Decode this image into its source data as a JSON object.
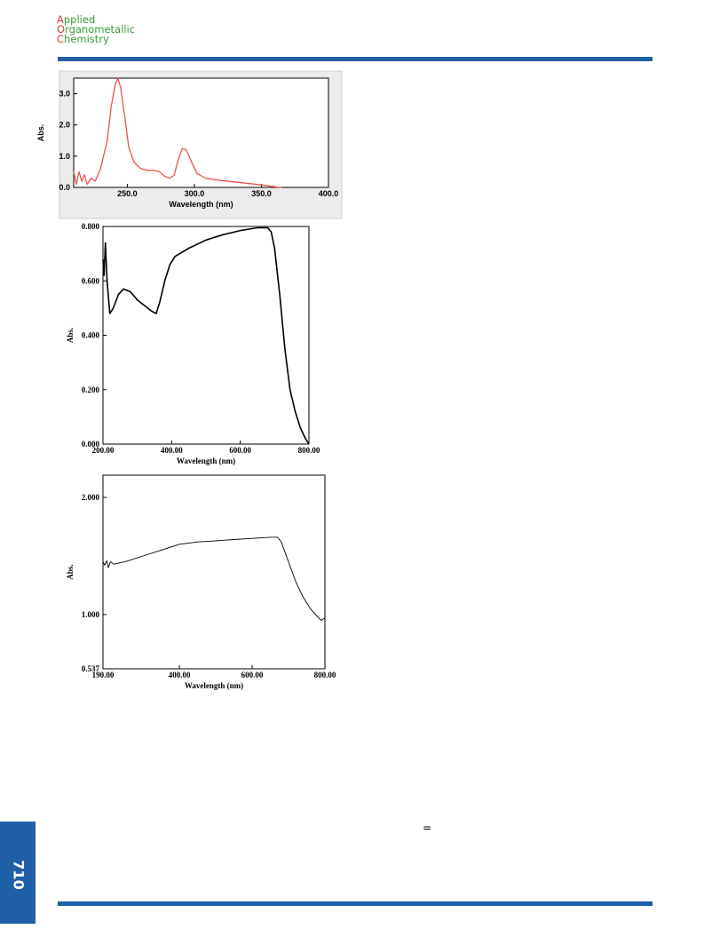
{
  "header": {
    "journal": [
      "Applied",
      "Organometallic",
      "Chemistry"
    ]
  },
  "page_number": "710",
  "symbol": "=",
  "chart_data": [
    {
      "type": "line",
      "xlabel": "Wavelength (nm)",
      "ylabel": "Abs.",
      "xlim": [
        210,
        400
      ],
      "ylim": [
        0,
        3.5
      ],
      "xticks": [
        {
          "value": 250,
          "label": "250.0"
        },
        {
          "value": 300,
          "label": "300.0"
        },
        {
          "value": 350,
          "label": "350.0"
        },
        {
          "value": 400,
          "label": "400.0"
        }
      ],
      "yticks": [
        {
          "value": 0,
          "label": "0.0"
        },
        {
          "value": 1,
          "label": "1.0"
        },
        {
          "value": 2,
          "label": "2.0"
        },
        {
          "value": 3,
          "label": "3.0"
        }
      ],
      "x": [
        210,
        212,
        214,
        216,
        218,
        220,
        223,
        226,
        230,
        235,
        238,
        241,
        243,
        245,
        248,
        251,
        255,
        260,
        265,
        270,
        274,
        278,
        282,
        285,
        288,
        291,
        294,
        298,
        302,
        308,
        320,
        335,
        350,
        360,
        365
      ],
      "series": [
        {
          "color": "#e8534f",
          "values": [
            0.5,
            0.1,
            0.5,
            0.2,
            0.4,
            0.1,
            0.3,
            0.2,
            0.6,
            1.5,
            2.6,
            3.3,
            3.5,
            3.2,
            2.3,
            1.3,
            0.8,
            0.6,
            0.55,
            0.55,
            0.5,
            0.35,
            0.3,
            0.4,
            0.9,
            1.25,
            1.2,
            0.8,
            0.45,
            0.3,
            0.22,
            0.15,
            0.08,
            0.02,
            0
          ]
        }
      ]
    },
    {
      "type": "line",
      "xlabel": "Wavelength (nm)",
      "ylabel": "Abs.",
      "xlim": [
        200,
        800
      ],
      "ylim": [
        0,
        0.8
      ],
      "xticks": [
        {
          "value": 200,
          "label": "200.00"
        },
        {
          "value": 400,
          "label": "400.00"
        },
        {
          "value": 600,
          "label": "600.00"
        },
        {
          "value": 800,
          "label": "800.00"
        }
      ],
      "yticks": [
        {
          "value": 0,
          "label": "0.000"
        },
        {
          "value": 0.2,
          "label": "0.200"
        },
        {
          "value": 0.4,
          "label": "0.400"
        },
        {
          "value": 0.6,
          "label": "0.600"
        },
        {
          "value": 0.8,
          "label": "0.800"
        }
      ],
      "x": [
        200,
        203,
        207,
        212,
        220,
        230,
        245,
        260,
        280,
        300,
        320,
        340,
        355,
        365,
        380,
        395,
        410,
        450,
        500,
        550,
        600,
        650,
        680,
        690,
        700,
        715,
        730,
        745,
        760,
        775,
        790,
        800
      ],
      "series": [
        {
          "color": "#000000",
          "values": [
            0.68,
            0.62,
            0.74,
            0.6,
            0.48,
            0.5,
            0.55,
            0.57,
            0.56,
            0.53,
            0.51,
            0.49,
            0.48,
            0.52,
            0.6,
            0.66,
            0.69,
            0.72,
            0.75,
            0.77,
            0.785,
            0.795,
            0.795,
            0.78,
            0.72,
            0.55,
            0.35,
            0.2,
            0.12,
            0.06,
            0.02,
            0
          ]
        }
      ]
    },
    {
      "type": "line",
      "xlabel": "Wavelength (nm)",
      "ylabel": "Abs.",
      "xlim": [
        190,
        800
      ],
      "ylim": [
        0.537,
        2.19
      ],
      "xticks": [
        {
          "value": 190,
          "label": "190.00"
        },
        {
          "value": 400,
          "label": "400.00"
        },
        {
          "value": 600,
          "label": "600.00"
        },
        {
          "value": 800,
          "label": "800.00"
        }
      ],
      "yticks": [
        {
          "value": 0.537,
          "label": "0.537"
        },
        {
          "value": 1,
          "label": "1.000"
        },
        {
          "value": 2,
          "label": "2.000"
        }
      ],
      "x": [
        190,
        195,
        200,
        205,
        210,
        220,
        250,
        300,
        350,
        400,
        450,
        500,
        550,
        600,
        650,
        670,
        680,
        700,
        720,
        740,
        760,
        780,
        790,
        800
      ],
      "series": [
        {
          "color": "#000000",
          "values": [
            1.45,
            1.42,
            1.46,
            1.4,
            1.45,
            1.43,
            1.45,
            1.5,
            1.55,
            1.6,
            1.62,
            1.63,
            1.64,
            1.65,
            1.66,
            1.66,
            1.62,
            1.45,
            1.28,
            1.15,
            1.05,
            0.98,
            0.95,
            0.97
          ]
        }
      ]
    }
  ]
}
